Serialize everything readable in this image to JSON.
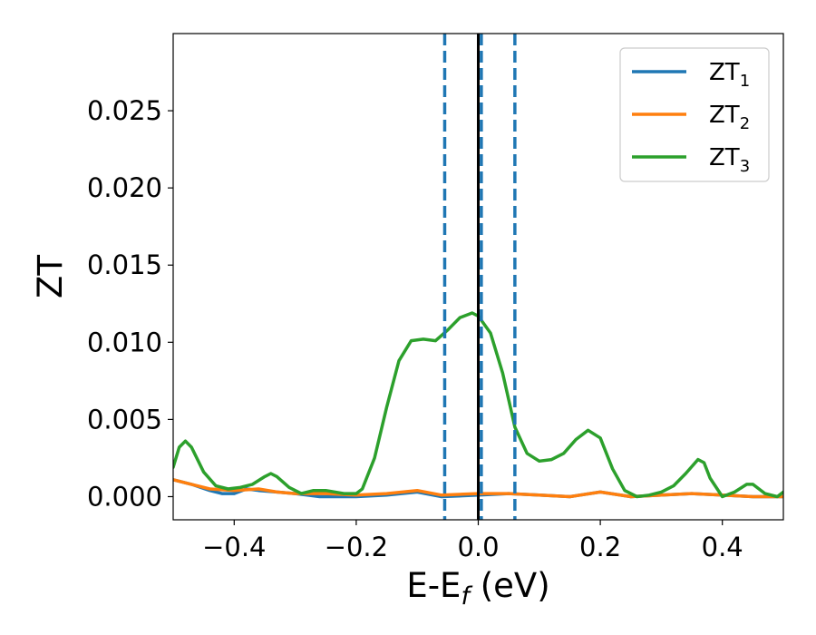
{
  "chart_data": {
    "type": "line",
    "title": "",
    "xlabel": "E-E",
    "xlabel_subscript": "f",
    "xlabel_unit": " (eV)",
    "ylabel": "ZT",
    "xlim": [
      -0.5,
      0.5
    ],
    "ylim": [
      -0.0015,
      0.03
    ],
    "xticks": [
      -0.4,
      -0.2,
      0.0,
      0.2,
      0.4
    ],
    "xtick_labels": [
      "−0.4",
      "−0.2",
      "0.0",
      "0.2",
      "0.4"
    ],
    "yticks": [
      0.0,
      0.005,
      0.01,
      0.015,
      0.02,
      0.025
    ],
    "ytick_labels": [
      "0.000",
      "0.005",
      "0.010",
      "0.015",
      "0.020",
      "0.025"
    ],
    "grid": false,
    "legend_position": "top-right",
    "vertical_lines": [
      {
        "x": 0.0,
        "color": "#000000",
        "style": "solid"
      },
      {
        "x": -0.055,
        "color": "#1f77b4",
        "style": "dashed"
      },
      {
        "x": 0.005,
        "color": "#1f77b4",
        "style": "dashed"
      },
      {
        "x": 0.06,
        "color": "#1f77b4",
        "style": "dashed"
      }
    ],
    "series": [
      {
        "name": "ZT",
        "name_subscript": "1",
        "color": "#1f77b4",
        "points": [
          [
            -0.5,
            0.0011
          ],
          [
            -0.47,
            0.0008
          ],
          [
            -0.44,
            0.0004
          ],
          [
            -0.42,
            0.0002
          ],
          [
            -0.4,
            0.0002
          ],
          [
            -0.38,
            0.0005
          ],
          [
            -0.36,
            0.0004
          ],
          [
            -0.33,
            0.0003
          ],
          [
            -0.3,
            0.0002
          ],
          [
            -0.28,
            0.0001
          ],
          [
            -0.26,
            0.0
          ],
          [
            -0.22,
            0.0
          ],
          [
            -0.2,
            0.0
          ],
          [
            -0.15,
            0.0001
          ],
          [
            -0.1,
            0.0003
          ],
          [
            -0.06,
            0.0
          ],
          [
            0.0,
            0.0001
          ],
          [
            0.05,
            0.0002
          ],
          [
            0.1,
            0.0001
          ],
          [
            0.15,
            0.0
          ],
          [
            0.2,
            0.0003
          ],
          [
            0.25,
            0.0
          ],
          [
            0.3,
            0.0001
          ],
          [
            0.35,
            0.0002
          ],
          [
            0.4,
            0.0001
          ],
          [
            0.45,
            0.0
          ],
          [
            0.5,
            0.0
          ]
        ]
      },
      {
        "name": "ZT",
        "name_subscript": "2",
        "color": "#ff7f0e",
        "points": [
          [
            -0.5,
            0.0011
          ],
          [
            -0.47,
            0.0008
          ],
          [
            -0.44,
            0.0005
          ],
          [
            -0.4,
            0.0004
          ],
          [
            -0.36,
            0.0005
          ],
          [
            -0.33,
            0.0003
          ],
          [
            -0.3,
            0.0002
          ],
          [
            -0.25,
            0.0002
          ],
          [
            -0.2,
            0.0001
          ],
          [
            -0.15,
            0.0002
          ],
          [
            -0.1,
            0.0004
          ],
          [
            -0.06,
            0.0001
          ],
          [
            0.0,
            0.0002
          ],
          [
            0.05,
            0.0002
          ],
          [
            0.1,
            0.0001
          ],
          [
            0.15,
            0.0
          ],
          [
            0.2,
            0.0003
          ],
          [
            0.25,
            0.0
          ],
          [
            0.3,
            0.0001
          ],
          [
            0.35,
            0.0002
          ],
          [
            0.4,
            0.0001
          ],
          [
            0.45,
            0.0
          ],
          [
            0.5,
            0.0
          ]
        ]
      },
      {
        "name": "ZT",
        "name_subscript": "3",
        "color": "#2ca02c",
        "points": [
          [
            -0.5,
            0.0019
          ],
          [
            -0.49,
            0.0032
          ],
          [
            -0.48,
            0.0036
          ],
          [
            -0.47,
            0.0032
          ],
          [
            -0.45,
            0.0016
          ],
          [
            -0.43,
            0.0007
          ],
          [
            -0.41,
            0.0005
          ],
          [
            -0.39,
            0.0006
          ],
          [
            -0.37,
            0.0008
          ],
          [
            -0.35,
            0.0013
          ],
          [
            -0.34,
            0.0015
          ],
          [
            -0.33,
            0.0013
          ],
          [
            -0.31,
            0.0006
          ],
          [
            -0.29,
            0.0002
          ],
          [
            -0.27,
            0.0004
          ],
          [
            -0.25,
            0.0004
          ],
          [
            -0.22,
            0.0002
          ],
          [
            -0.2,
            0.0002
          ],
          [
            -0.19,
            0.0005
          ],
          [
            -0.17,
            0.0025
          ],
          [
            -0.15,
            0.0058
          ],
          [
            -0.13,
            0.0088
          ],
          [
            -0.11,
            0.0101
          ],
          [
            -0.09,
            0.0102
          ],
          [
            -0.07,
            0.0101
          ],
          [
            -0.05,
            0.0108
          ],
          [
            -0.03,
            0.0116
          ],
          [
            -0.01,
            0.0119
          ],
          [
            0.0,
            0.0117
          ],
          [
            0.02,
            0.0106
          ],
          [
            0.04,
            0.008
          ],
          [
            0.06,
            0.0045
          ],
          [
            0.08,
            0.0028
          ],
          [
            0.1,
            0.0023
          ],
          [
            0.12,
            0.0024
          ],
          [
            0.14,
            0.0028
          ],
          [
            0.16,
            0.0037
          ],
          [
            0.18,
            0.0043
          ],
          [
            0.2,
            0.0038
          ],
          [
            0.22,
            0.0018
          ],
          [
            0.24,
            0.0004
          ],
          [
            0.26,
            0.0
          ],
          [
            0.28,
            0.0001
          ],
          [
            0.3,
            0.0003
          ],
          [
            0.32,
            0.0007
          ],
          [
            0.34,
            0.0015
          ],
          [
            0.36,
            0.0024
          ],
          [
            0.37,
            0.0022
          ],
          [
            0.38,
            0.0012
          ],
          [
            0.4,
            0.0
          ],
          [
            0.42,
            0.0003
          ],
          [
            0.44,
            0.0008
          ],
          [
            0.45,
            0.0008
          ],
          [
            0.47,
            0.0002
          ],
          [
            0.49,
            0.0
          ],
          [
            0.5,
            0.0003
          ]
        ]
      }
    ]
  }
}
